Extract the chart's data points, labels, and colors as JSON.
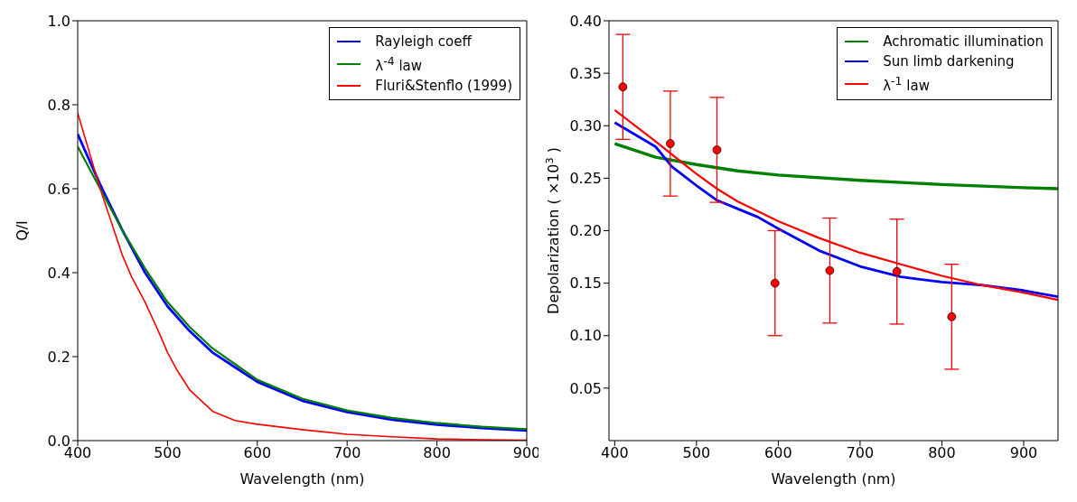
{
  "chart_data": [
    {
      "type": "line",
      "xlabel": "Wavelength (nm)",
      "ylabel": "Q/I",
      "xlim": [
        400,
        900
      ],
      "ylim": [
        0,
        1.0
      ],
      "xticks": [
        400,
        500,
        600,
        700,
        800,
        900
      ],
      "yticks": [
        {
          "value": 0,
          "label": "0.0"
        },
        0.2,
        0.4,
        0.6,
        0.8,
        {
          "value": 1.0,
          "label": "1.0"
        }
      ],
      "grid": false,
      "legend": "top right",
      "marker": "none",
      "line_style": "solid",
      "series": [
        {
          "name": "Rayleigh coeff",
          "color": "#0000ff",
          "x": [
            400,
            425,
            450,
            475,
            500,
            525,
            550,
            600,
            650,
            700,
            750,
            800,
            850,
            900
          ],
          "values": [
            0.73,
            0.61,
            0.5,
            0.4,
            0.32,
            0.26,
            0.21,
            0.14,
            0.095,
            0.068,
            0.05,
            0.038,
            0.03,
            0.024
          ]
        },
        {
          "name": "λ$^{-4}$ law",
          "color": "#008000",
          "x": [
            400,
            425,
            450,
            475,
            500,
            525,
            550,
            600,
            650,
            700,
            750,
            800,
            850,
            900
          ],
          "values": [
            0.7,
            0.6,
            0.5,
            0.41,
            0.33,
            0.27,
            0.22,
            0.145,
            0.1,
            0.072,
            0.054,
            0.042,
            0.033,
            0.027
          ]
        },
        {
          "name": "Fluri&Stenflo (1999)",
          "color": "#ff0000",
          "x": [
            400,
            425,
            450,
            460,
            475,
            490,
            500,
            510,
            525,
            550,
            575,
            600,
            650,
            700,
            750,
            800,
            850,
            900
          ],
          "values": [
            0.78,
            0.6,
            0.44,
            0.39,
            0.33,
            0.26,
            0.21,
            0.17,
            0.12,
            0.07,
            0.048,
            0.039,
            0.026,
            0.015,
            0.009,
            0.004,
            0.002,
            0.001
          ]
        }
      ]
    },
    {
      "type": "line",
      "xlabel": "Wavelength (nm)",
      "ylabel": "Depolarization ( ×10$^{3}$ )",
      "xlim": [
        393,
        942
      ],
      "ylim": [
        0,
        0.4
      ],
      "xticks": [
        400,
        500,
        600,
        700,
        800,
        900
      ],
      "yticks": [
        {
          "value": 0.05,
          "label": "0.05"
        },
        {
          "value": 0.1,
          "label": "0.10"
        },
        {
          "value": 0.15,
          "label": "0.15"
        },
        {
          "value": 0.2,
          "label": "0.20"
        },
        {
          "value": 0.25,
          "label": "0.25"
        },
        {
          "value": 0.3,
          "label": "0.30"
        },
        {
          "value": 0.35,
          "label": "0.35"
        },
        {
          "value": 0.4,
          "label": "0.40"
        }
      ],
      "grid": false,
      "legend": "top right",
      "line_style": "solid",
      "series": [
        {
          "name": "Achromatic illumination",
          "color": "#008000",
          "marker": "none",
          "x": [
            400,
            450,
            500,
            550,
            600,
            700,
            800,
            900,
            942
          ],
          "values": [
            0.283,
            0.27,
            0.263,
            0.257,
            0.253,
            0.248,
            0.244,
            0.241,
            0.24
          ]
        },
        {
          "name": "Sun limb darkening",
          "color": "#0000ff",
          "marker": "none",
          "x": [
            400,
            450,
            470,
            500,
            525,
            550,
            575,
            600,
            650,
            700,
            750,
            800,
            850,
            900,
            942
          ],
          "values": [
            0.303,
            0.28,
            0.261,
            0.243,
            0.229,
            0.221,
            0.213,
            0.202,
            0.181,
            0.166,
            0.156,
            0.151,
            0.148,
            0.143,
            0.137
          ]
        },
        {
          "name": "λ$^{-1}$ law",
          "color": "#ff0000",
          "marker": "none",
          "x": [
            400,
            450,
            500,
            525,
            550,
            600,
            650,
            700,
            750,
            800,
            850,
            900,
            942
          ],
          "values": [
            0.315,
            0.285,
            0.254,
            0.24,
            0.228,
            0.209,
            0.193,
            0.179,
            0.168,
            0.157,
            0.148,
            0.141,
            0.134
          ]
        },
        {
          "type": "scatter",
          "color": "#ff0000",
          "marker": "circle",
          "x": [
            410,
            468,
            525,
            596,
            663,
            745,
            812
          ],
          "values": [
            0.337,
            0.283,
            0.277,
            0.15,
            0.162,
            0.161,
            0.118
          ],
          "errors": [
            0.05,
            0.05,
            0.05,
            0.05,
            0.05,
            0.05,
            0.05
          ]
        }
      ]
    }
  ]
}
